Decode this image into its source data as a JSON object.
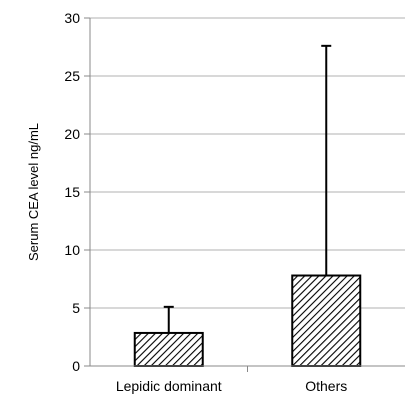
{
  "chart_data": {
    "type": "bar",
    "title": "",
    "xlabel": "",
    "ylabel": "Serum CEA level ng/mL",
    "ylim": [
      0,
      30
    ],
    "yticks": [
      0,
      5,
      10,
      15,
      20,
      25,
      30
    ],
    "grid": true,
    "legend": "none",
    "categories": [
      "Lepidic dominant",
      "Others"
    ],
    "values": [
      2.85,
      7.8
    ],
    "error_upper": [
      5.1,
      27.6
    ],
    "fill_pattern": "diagonal-hatch",
    "colors": {
      "hatch": "#000000",
      "bar_fill": "#ffffff",
      "grid": "#b0b0b0",
      "axis": "#888888"
    }
  }
}
